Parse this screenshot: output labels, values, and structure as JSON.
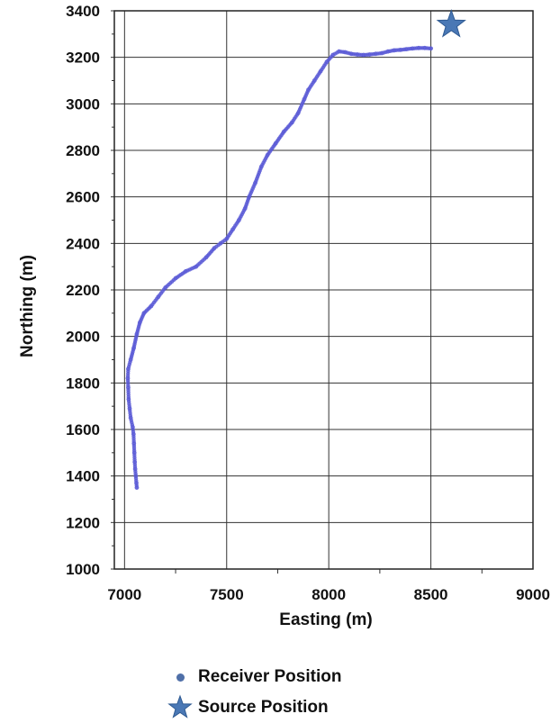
{
  "chart_data": {
    "type": "scatter",
    "title": "",
    "xlabel": "Easting (m)",
    "ylabel": "Northing (m)",
    "xlim": [
      6950,
      9000
    ],
    "ylim": [
      1000,
      3400
    ],
    "x_ticks": [
      7000,
      7500,
      8000,
      8500,
      9000
    ],
    "y_ticks": [
      1000,
      1200,
      1400,
      1600,
      1800,
      2000,
      2200,
      2400,
      2600,
      2800,
      3000,
      3200,
      3400
    ],
    "grid": true,
    "legend_position": "bottom",
    "series": [
      {
        "name": "Receiver Position",
        "marker": "dot",
        "color": "#5a5ad6",
        "points": [
          [
            7060,
            1350
          ],
          [
            7058,
            1370
          ],
          [
            7055,
            1400
          ],
          [
            7052,
            1430
          ],
          [
            7050,
            1460
          ],
          [
            7048,
            1500
          ],
          [
            7046,
            1540
          ],
          [
            7044,
            1580
          ],
          [
            7040,
            1610
          ],
          [
            7030,
            1650
          ],
          [
            7025,
            1690
          ],
          [
            7020,
            1730
          ],
          [
            7018,
            1780
          ],
          [
            7016,
            1820
          ],
          [
            7018,
            1860
          ],
          [
            7030,
            1900
          ],
          [
            7045,
            1950
          ],
          [
            7060,
            2010
          ],
          [
            7075,
            2060
          ],
          [
            7095,
            2100
          ],
          [
            7130,
            2130
          ],
          [
            7165,
            2170
          ],
          [
            7200,
            2210
          ],
          [
            7250,
            2250
          ],
          [
            7300,
            2280
          ],
          [
            7350,
            2300
          ],
          [
            7400,
            2340
          ],
          [
            7440,
            2380
          ],
          [
            7470,
            2400
          ],
          [
            7500,
            2420
          ],
          [
            7530,
            2460
          ],
          [
            7560,
            2500
          ],
          [
            7590,
            2550
          ],
          [
            7610,
            2600
          ],
          [
            7640,
            2660
          ],
          [
            7670,
            2730
          ],
          [
            7700,
            2780
          ],
          [
            7740,
            2830
          ],
          [
            7780,
            2880
          ],
          [
            7820,
            2920
          ],
          [
            7850,
            2960
          ],
          [
            7880,
            3020
          ],
          [
            7900,
            3060
          ],
          [
            7930,
            3100
          ],
          [
            7960,
            3140
          ],
          [
            7990,
            3180
          ],
          [
            8020,
            3210
          ],
          [
            8050,
            3225
          ],
          [
            8080,
            3222
          ],
          [
            8110,
            3215
          ],
          [
            8140,
            3212
          ],
          [
            8170,
            3210
          ],
          [
            8200,
            3212
          ],
          [
            8230,
            3215
          ],
          [
            8260,
            3218
          ],
          [
            8290,
            3225
          ],
          [
            8320,
            3230
          ],
          [
            8350,
            3232
          ],
          [
            8380,
            3235
          ],
          [
            8410,
            3238
          ],
          [
            8440,
            3240
          ],
          [
            8470,
            3240
          ],
          [
            8500,
            3238
          ]
        ]
      },
      {
        "name": "Source Position",
        "marker": "star",
        "color": "#4a78b5",
        "points": [
          [
            8600,
            3340
          ]
        ]
      }
    ]
  },
  "legend": {
    "receiver_label": "Receiver Position",
    "source_label": "Source Position"
  }
}
